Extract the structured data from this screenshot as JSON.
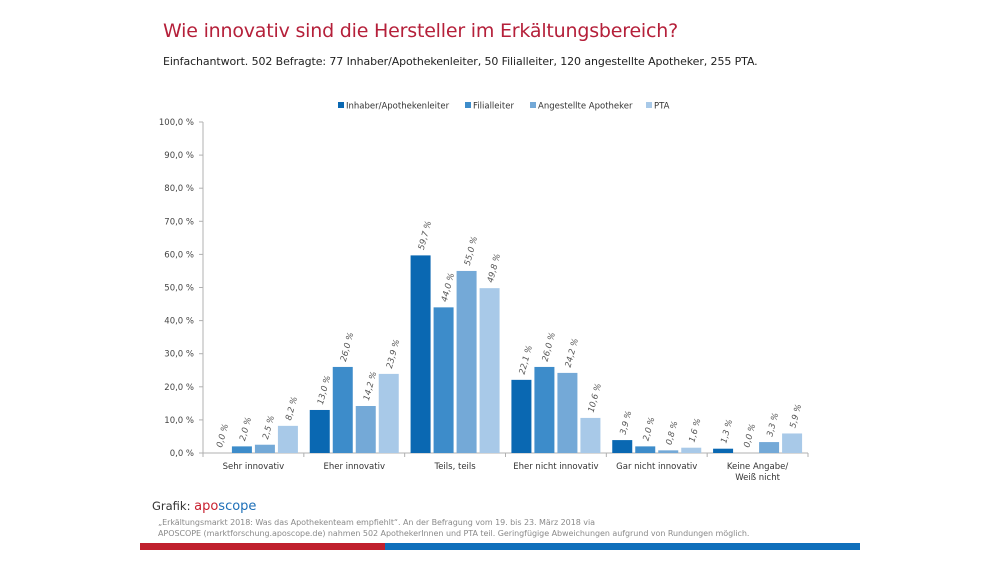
{
  "header": {
    "title": "Wie innovativ sind die Hersteller im Erkältungsbereich?",
    "subtitle": "Einfachantwort. 502 Befragte: 77 Inhaber/Apothekenleiter, 50 Filialleiter, 120 angestellte Apotheker, 255 PTA."
  },
  "footer": {
    "credit_label": "Grafik:",
    "brand_part1": "apo",
    "brand_part2": "scope",
    "source_line1": "„Erkältungsmarkt 2018: Was das Apothekenteam empfiehlt“. An der Befragung vom 19. bis 23. März 2018 via",
    "source_line2": "APOSCOPE (marktforschung.aposcope.de) nahmen 502 ApothekerInnen und PTA teil. Geringfügige Abweichungen aufgrund von Rundungen möglich.",
    "colors": {
      "red": "#c0202e",
      "blue": "#0f6fbb"
    }
  },
  "chart_data": {
    "type": "bar",
    "title": "Wie innovativ sind die Hersteller im Erkältungsbereich?",
    "xlabel": "",
    "ylabel": "",
    "ylim": [
      0,
      100
    ],
    "yticks": [
      "0,0 %",
      "10,0 %",
      "20,0 %",
      "30,0 %",
      "40,0 %",
      "50,0 %",
      "60,0 %",
      "70,0 %",
      "80,0 %",
      "90,0 %",
      "100,0 %"
    ],
    "grid": false,
    "legend_position": "top",
    "categories": [
      [
        "Sehr innovativ"
      ],
      [
        "Eher innovativ"
      ],
      [
        "Teils, teils"
      ],
      [
        "Eher nicht innovativ"
      ],
      [
        "Gar nicht innovativ"
      ],
      [
        "Keine Angabe/",
        "Weiß nicht"
      ]
    ],
    "series": [
      {
        "name": "Inhaber/Apothekenleiter",
        "color": "#0a68b2",
        "values": [
          0.0,
          13.0,
          59.7,
          22.1,
          3.9,
          1.3
        ],
        "labels": [
          "0,0 %",
          "13,0 %",
          "59,7 %",
          "22,1 %",
          "3,9 %",
          "1,3 %"
        ]
      },
      {
        "name": "Filialleiter",
        "color": "#3d8cca",
        "values": [
          2.0,
          26.0,
          44.0,
          26.0,
          2.0,
          0.0
        ],
        "labels": [
          "2,0 %",
          "26,0 %",
          "44,0 %",
          "26,0 %",
          "2,0 %",
          "0,0 %"
        ]
      },
      {
        "name": "Angestellte Apotheker",
        "color": "#74a9d7",
        "values": [
          2.5,
          14.2,
          55.0,
          24.2,
          0.8,
          3.3
        ],
        "labels": [
          "2,5 %",
          "14,2 %",
          "55,0 %",
          "24,2 %",
          "0,8 %",
          "3,3 %"
        ]
      },
      {
        "name": "PTA",
        "color": "#a8c9e8",
        "values": [
          8.2,
          23.9,
          49.8,
          10.6,
          1.6,
          5.9
        ],
        "labels": [
          "8,2 %",
          "23,9 %",
          "49,8 %",
          "10,6 %",
          "1,6 %",
          "5,9 %"
        ]
      }
    ]
  }
}
